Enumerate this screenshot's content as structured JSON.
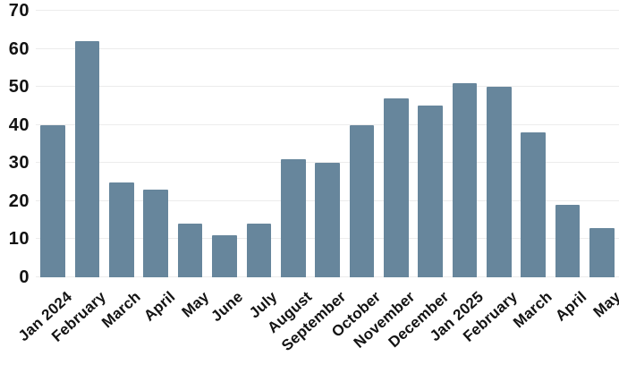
{
  "chart_data": {
    "type": "bar",
    "categories": [
      "Jan 2024",
      "February",
      "March",
      "April",
      "May",
      "June",
      "July",
      "August",
      "September",
      "October",
      "November",
      "December",
      "Jan 2025",
      "February",
      "March",
      "April",
      "May"
    ],
    "values": [
      40,
      62,
      25,
      23,
      14,
      11,
      14,
      31,
      30,
      40,
      47,
      45,
      51,
      50,
      38,
      19,
      13
    ],
    "title": "",
    "xlabel": "",
    "ylabel": "",
    "ylim": [
      0,
      70
    ],
    "yticks": [
      0,
      10,
      20,
      30,
      40,
      50,
      60,
      70
    ],
    "grid": true,
    "legend_position": "none",
    "x_tick_rotation_deg": -42,
    "colors": {
      "bar": "#67869c",
      "gridline": "#ececec",
      "label": "#131313",
      "background": "#ffffff"
    }
  }
}
